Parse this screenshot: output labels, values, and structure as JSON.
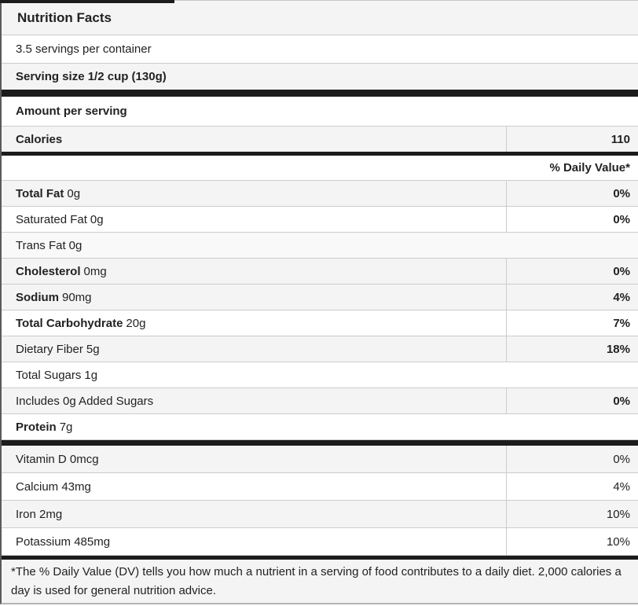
{
  "colors": {
    "shaded_row": "#f4f4f4",
    "row_border": "#cccccc",
    "section_bar": "#1c1c1c",
    "text": "#222222"
  },
  "header": {
    "title": "Nutrition Facts",
    "servings_per_container": "3.5 servings per container",
    "serving_size": "Serving size 1/2 cup (130g)"
  },
  "calories_section": {
    "amount_per_serving": "Amount per serving",
    "calories_label": "Calories",
    "calories_value": "110"
  },
  "daily_value_header": "% Daily Value*",
  "nutrients": [
    {
      "name": "Total Fat",
      "amount": "0g",
      "percent": "0%"
    },
    {
      "name": "Saturated Fat",
      "amount": "0g",
      "percent": "0%"
    },
    {
      "name": "Trans Fat",
      "amount": "0g",
      "percent": ""
    },
    {
      "name": "Cholesterol",
      "amount": "0mg",
      "percent": "0%"
    },
    {
      "name": "Sodium",
      "amount": "90mg",
      "percent": "4%"
    },
    {
      "name": "Total Carbohydrate",
      "amount": "20g",
      "percent": "7%"
    },
    {
      "name": "Dietary Fiber",
      "amount": "5g",
      "percent": "18%"
    },
    {
      "name": "Total Sugars",
      "amount": "1g",
      "percent": ""
    },
    {
      "name": "Includes 0g Added Sugars",
      "amount": "",
      "percent": "0%"
    },
    {
      "name": "Protein",
      "amount": "7g",
      "percent": ""
    }
  ],
  "vitamins": [
    {
      "name": "Vitamin D 0mcg",
      "percent": "0%"
    },
    {
      "name": "Calcium 43mg",
      "percent": "4%"
    },
    {
      "name": "Iron 2mg",
      "percent": "10%"
    },
    {
      "name": "Potassium 485mg",
      "percent": "10%"
    }
  ],
  "footnote": "*The % Daily Value (DV) tells you how much a nutrient in a serving of food contributes to a daily diet. 2,000 calories a day is used for general nutrition advice."
}
